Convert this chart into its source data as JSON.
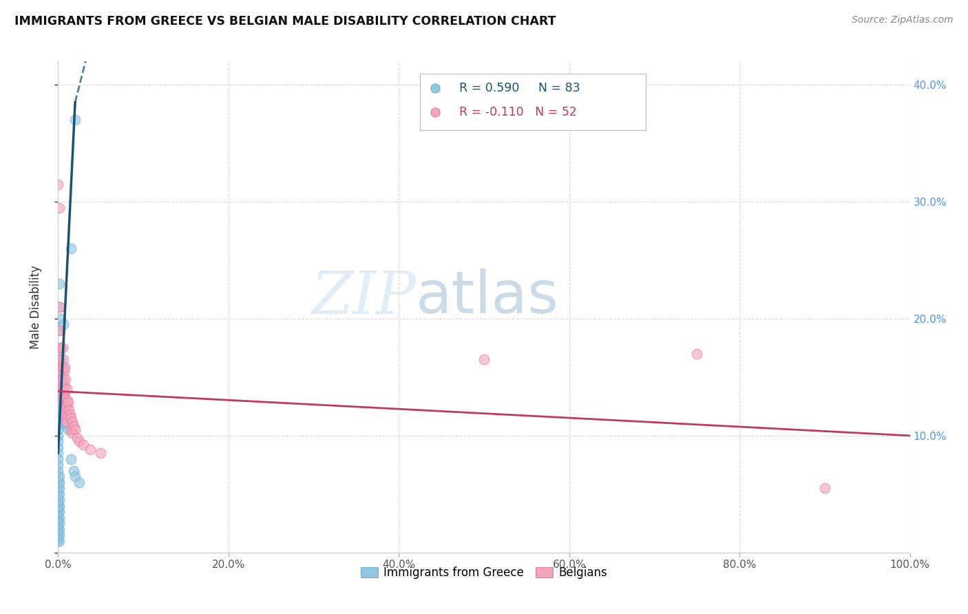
{
  "title": "IMMIGRANTS FROM GREECE VS BELGIAN MALE DISABILITY CORRELATION CHART",
  "source": "Source: ZipAtlas.com",
  "ylabel": "Male Disability",
  "xlim": [
    0,
    1.0
  ],
  "ylim": [
    0,
    0.42
  ],
  "xticks": [
    0.0,
    0.2,
    0.4,
    0.6,
    0.8,
    1.0
  ],
  "xticklabels": [
    "0.0%",
    "20.0%",
    "40.0%",
    "60.0%",
    "80.0%",
    "100.0%"
  ],
  "yticks": [
    0.0,
    0.1,
    0.2,
    0.3,
    0.4
  ],
  "yticklabels_right": [
    "",
    "10.0%",
    "20.0%",
    "30.0%",
    "40.0%"
  ],
  "watermark_zip": "ZIP",
  "watermark_atlas": "atlas",
  "legend_blue_label": "Immigrants from Greece",
  "legend_pink_label": "Belgians",
  "legend_r_blue": "R = 0.590",
  "legend_n_blue": "N = 83",
  "legend_r_pink": "R = -0.110",
  "legend_n_pink": "N = 52",
  "blue_color": "#92c5de",
  "blue_edge_color": "#6baed6",
  "blue_line_color": "#1a5276",
  "pink_color": "#f4a6bc",
  "pink_edge_color": "#e8799a",
  "pink_line_color": "#c0395f",
  "blue_scatter": [
    [
      0.0,
      0.01
    ],
    [
      0.0,
      0.012
    ],
    [
      0.0,
      0.014
    ],
    [
      0.0,
      0.018
    ],
    [
      0.0,
      0.02
    ],
    [
      0.0,
      0.022
    ],
    [
      0.0,
      0.025
    ],
    [
      0.0,
      0.028
    ],
    [
      0.0,
      0.03
    ],
    [
      0.0,
      0.032
    ],
    [
      0.0,
      0.034
    ],
    [
      0.0,
      0.036
    ],
    [
      0.0,
      0.038
    ],
    [
      0.0,
      0.04
    ],
    [
      0.0,
      0.042
    ],
    [
      0.0,
      0.045
    ],
    [
      0.0,
      0.05
    ],
    [
      0.0,
      0.055
    ],
    [
      0.0,
      0.06
    ],
    [
      0.0,
      0.065
    ],
    [
      0.0,
      0.07
    ],
    [
      0.0,
      0.075
    ],
    [
      0.0,
      0.08
    ],
    [
      0.0,
      0.085
    ],
    [
      0.0,
      0.09
    ],
    [
      0.0,
      0.095
    ],
    [
      0.0,
      0.1
    ],
    [
      0.0,
      0.105
    ],
    [
      0.0,
      0.11
    ],
    [
      0.0,
      0.115
    ],
    [
      0.0,
      0.12
    ],
    [
      0.0,
      0.125
    ],
    [
      0.0,
      0.13
    ],
    [
      0.0,
      0.135
    ],
    [
      0.0,
      0.14
    ],
    [
      0.0,
      0.145
    ],
    [
      0.0,
      0.15
    ],
    [
      0.0,
      0.155
    ],
    [
      0.0,
      0.16
    ],
    [
      0.0,
      0.165
    ],
    [
      0.001,
      0.01
    ],
    [
      0.001,
      0.015
    ],
    [
      0.001,
      0.02
    ],
    [
      0.001,
      0.025
    ],
    [
      0.001,
      0.03
    ],
    [
      0.001,
      0.035
    ],
    [
      0.001,
      0.04
    ],
    [
      0.001,
      0.045
    ],
    [
      0.001,
      0.05
    ],
    [
      0.001,
      0.055
    ],
    [
      0.001,
      0.06
    ],
    [
      0.001,
      0.065
    ],
    [
      0.001,
      0.12
    ],
    [
      0.001,
      0.15
    ],
    [
      0.001,
      0.17
    ],
    [
      0.001,
      0.19
    ],
    [
      0.001,
      0.21
    ],
    [
      0.001,
      0.23
    ],
    [
      0.002,
      0.11
    ],
    [
      0.002,
      0.13
    ],
    [
      0.002,
      0.15
    ],
    [
      0.002,
      0.165
    ],
    [
      0.003,
      0.125
    ],
    [
      0.003,
      0.145
    ],
    [
      0.003,
      0.2
    ],
    [
      0.004,
      0.13
    ],
    [
      0.004,
      0.145
    ],
    [
      0.005,
      0.12
    ],
    [
      0.005,
      0.14
    ],
    [
      0.006,
      0.13
    ],
    [
      0.006,
      0.195
    ],
    [
      0.007,
      0.115
    ],
    [
      0.007,
      0.135
    ],
    [
      0.008,
      0.125
    ],
    [
      0.009,
      0.12
    ],
    [
      0.01,
      0.11
    ],
    [
      0.012,
      0.105
    ],
    [
      0.015,
      0.08
    ],
    [
      0.018,
      0.07
    ],
    [
      0.02,
      0.065
    ],
    [
      0.025,
      0.06
    ],
    [
      0.015,
      0.26
    ],
    [
      0.02,
      0.37
    ]
  ],
  "pink_scatter": [
    [
      0.0,
      0.315
    ],
    [
      0.001,
      0.295
    ],
    [
      0.002,
      0.21
    ],
    [
      0.002,
      0.19
    ],
    [
      0.003,
      0.175
    ],
    [
      0.003,
      0.165
    ],
    [
      0.003,
      0.175
    ],
    [
      0.004,
      0.16
    ],
    [
      0.004,
      0.155
    ],
    [
      0.004,
      0.145
    ],
    [
      0.004,
      0.138
    ],
    [
      0.004,
      0.148
    ],
    [
      0.005,
      0.175
    ],
    [
      0.005,
      0.158
    ],
    [
      0.005,
      0.142
    ],
    [
      0.005,
      0.132
    ],
    [
      0.006,
      0.165
    ],
    [
      0.006,
      0.148
    ],
    [
      0.006,
      0.135
    ],
    [
      0.007,
      0.155
    ],
    [
      0.007,
      0.138
    ],
    [
      0.007,
      0.125
    ],
    [
      0.007,
      0.12
    ],
    [
      0.008,
      0.158
    ],
    [
      0.008,
      0.142
    ],
    [
      0.008,
      0.128
    ],
    [
      0.008,
      0.115
    ],
    [
      0.009,
      0.148
    ],
    [
      0.009,
      0.132
    ],
    [
      0.009,
      0.118
    ],
    [
      0.01,
      0.14
    ],
    [
      0.01,
      0.125
    ],
    [
      0.01,
      0.112
    ],
    [
      0.011,
      0.13
    ],
    [
      0.011,
      0.118
    ],
    [
      0.012,
      0.128
    ],
    [
      0.013,
      0.122
    ],
    [
      0.014,
      0.118
    ],
    [
      0.015,
      0.115
    ],
    [
      0.015,
      0.105
    ],
    [
      0.017,
      0.112
    ],
    [
      0.017,
      0.102
    ],
    [
      0.018,
      0.108
    ],
    [
      0.02,
      0.105
    ],
    [
      0.022,
      0.098
    ],
    [
      0.025,
      0.095
    ],
    [
      0.03,
      0.092
    ],
    [
      0.038,
      0.088
    ],
    [
      0.05,
      0.085
    ],
    [
      0.5,
      0.165
    ],
    [
      0.75,
      0.17
    ],
    [
      0.9,
      0.055
    ]
  ],
  "blue_trendline": [
    [
      0.0,
      0.085
    ],
    [
      0.02,
      0.385
    ]
  ],
  "blue_trendline_ext": [
    [
      0.02,
      0.385
    ],
    [
      0.06,
      0.5
    ]
  ],
  "pink_trendline": [
    [
      0.0,
      0.138
    ],
    [
      1.0,
      0.1
    ]
  ],
  "grid_color": "#d9d9d9",
  "background_color": "#ffffff"
}
